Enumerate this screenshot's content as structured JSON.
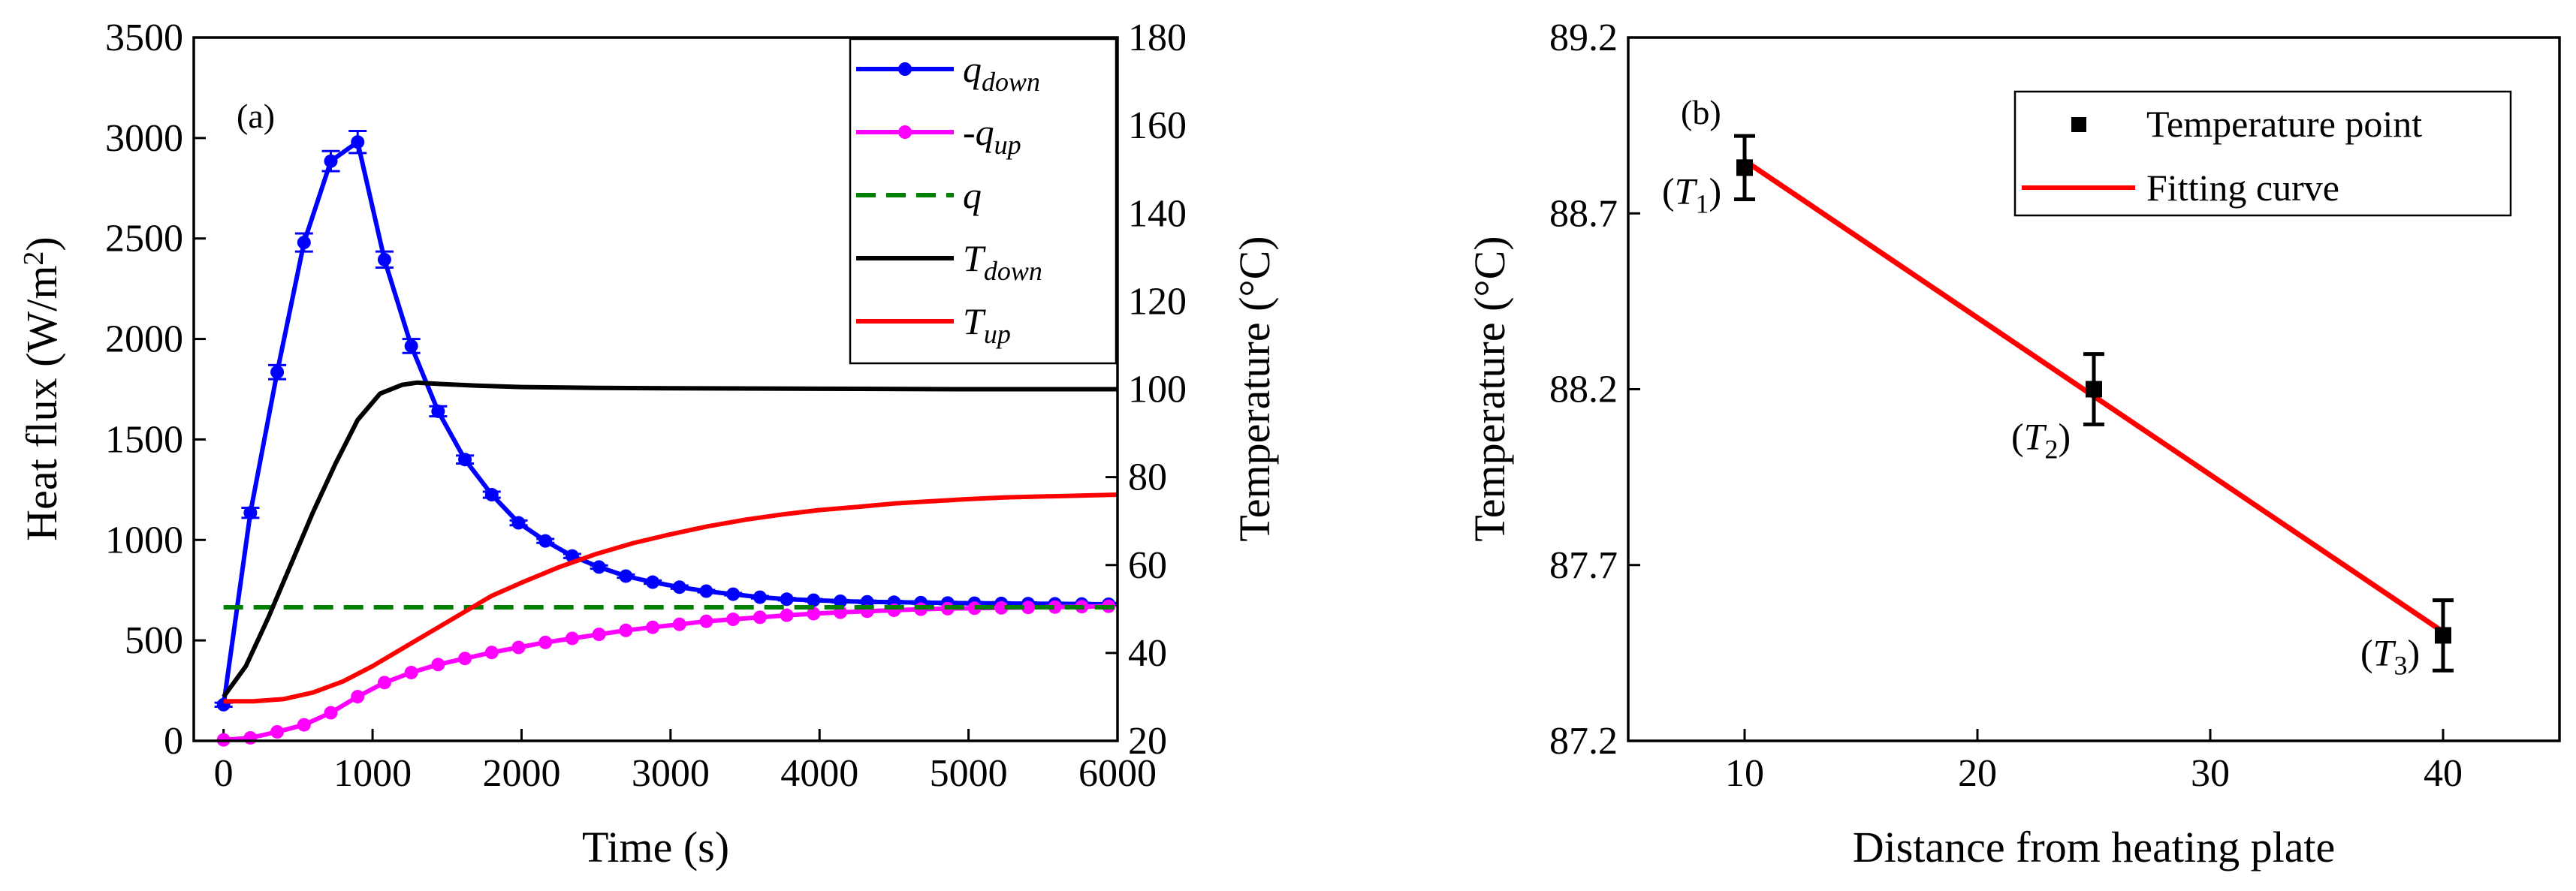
{
  "chart_data": [
    {
      "type": "line",
      "panel_label": "(a)",
      "xlabel": "Time (s)",
      "ylabel": "Heat flux (W/m²)",
      "ylabel_base": "Heat flux (W/m",
      "ylabel_sup": "2",
      "ylabel_end": ")",
      "y2label": "Temperature (°C)",
      "xlim": [
        -200,
        6000
      ],
      "ylim": [
        0,
        3500
      ],
      "y2lim": [
        20,
        180
      ],
      "xticks": [
        0,
        1000,
        2000,
        3000,
        4000,
        5000,
        6000
      ],
      "yticks": [
        0,
        500,
        1000,
        1500,
        2000,
        2500,
        3000,
        3500
      ],
      "y2ticks": [
        20,
        40,
        60,
        80,
        100,
        120,
        140,
        160,
        180
      ],
      "legend_position": "top-right",
      "series": [
        {
          "name": "q_down",
          "legend": {
            "main": "q",
            "sub": "down",
            "prefix": ""
          },
          "color": "#0000ff",
          "axis": "left",
          "style": "solid-markers-errorbars",
          "x": [
            0,
            180,
            360,
            540,
            720,
            900,
            1080,
            1260,
            1440,
            1620,
            1800,
            1980,
            2160,
            2340,
            2520,
            2700,
            2880,
            3060,
            3240,
            3420,
            3600,
            3780,
            3960,
            4140,
            4320,
            4500,
            4680,
            4860,
            5040,
            5220,
            5400,
            5580,
            5760,
            5940
          ],
          "values": [
            180,
            1135,
            1835,
            2480,
            2885,
            2980,
            2395,
            1965,
            1640,
            1400,
            1225,
            1085,
            995,
            920,
            865,
            820,
            790,
            765,
            745,
            730,
            715,
            705,
            700,
            695,
            692,
            690,
            688,
            686,
            685,
            684,
            683,
            682,
            681,
            680
          ],
          "errors": [
            10,
            25,
            35,
            45,
            50,
            55,
            40,
            35,
            25,
            20,
            15,
            12,
            10,
            10,
            8,
            8,
            8,
            8,
            6,
            6,
            6,
            6,
            6,
            6,
            6,
            6,
            6,
            6,
            6,
            6,
            6,
            6,
            6,
            6
          ]
        },
        {
          "name": "-q_up",
          "legend": {
            "main": "q",
            "sub": "up",
            "prefix": "-"
          },
          "color": "#ff00ff",
          "axis": "left",
          "style": "solid-markers",
          "x": [
            0,
            180,
            360,
            540,
            720,
            900,
            1080,
            1260,
            1440,
            1620,
            1800,
            1980,
            2160,
            2340,
            2520,
            2700,
            2880,
            3060,
            3240,
            3420,
            3600,
            3780,
            3960,
            4140,
            4320,
            4500,
            4680,
            4860,
            5040,
            5220,
            5400,
            5580,
            5760,
            5940
          ],
          "values": [
            5,
            15,
            45,
            80,
            140,
            220,
            290,
            340,
            380,
            410,
            440,
            465,
            490,
            510,
            530,
            550,
            565,
            580,
            595,
            605,
            615,
            625,
            633,
            640,
            645,
            650,
            655,
            658,
            660,
            662,
            664,
            666,
            668,
            670
          ]
        },
        {
          "name": "q",
          "legend": {
            "main": "q",
            "sub": "",
            "prefix": ""
          },
          "color": "#008000",
          "axis": "left",
          "style": "dashed",
          "x": [
            0,
            6000
          ],
          "values": [
            665,
            665
          ]
        },
        {
          "name": "T_down",
          "legend": {
            "main": "T",
            "sub": "down",
            "prefix": ""
          },
          "color": "#000000",
          "axis": "right",
          "style": "solid",
          "x": [
            0,
            150,
            300,
            450,
            600,
            750,
            900,
            1050,
            1200,
            1300,
            1450,
            1700,
            2000,
            2500,
            3000,
            4000,
            5000,
            6000
          ],
          "values": [
            30,
            37,
            48,
            60,
            72,
            83,
            93,
            99,
            101,
            101.5,
            101.2,
            100.8,
            100.5,
            100.3,
            100.2,
            100.1,
            100,
            100
          ]
        },
        {
          "name": "T_up",
          "legend": {
            "main": "T",
            "sub": "up",
            "prefix": ""
          },
          "color": "#ff0000",
          "axis": "right",
          "style": "solid",
          "x": [
            0,
            200,
            400,
            600,
            800,
            1000,
            1200,
            1400,
            1600,
            1800,
            2000,
            2250,
            2500,
            2750,
            3000,
            3250,
            3500,
            3750,
            4000,
            4250,
            4500,
            4750,
            5000,
            5250,
            5500,
            5750,
            6000
          ],
          "values": [
            29,
            29,
            29.5,
            31,
            33.5,
            37,
            41,
            45,
            49,
            53,
            56,
            59.5,
            62.5,
            65,
            67,
            68.8,
            70.3,
            71.5,
            72.5,
            73.2,
            74,
            74.5,
            75,
            75.4,
            75.6,
            75.8,
            76
          ]
        }
      ]
    },
    {
      "type": "scatter",
      "panel_label": "(b)",
      "xlabel": "Distance from heating plate",
      "ylabel": "Temperature (°C)",
      "xlim": [
        5,
        45
      ],
      "ylim": [
        87.2,
        89.2
      ],
      "xticks": [
        10,
        20,
        30,
        40
      ],
      "yticks": [
        "87.2",
        "87.7",
        "88.2",
        "88.7",
        "89.2"
      ],
      "legend_position": "top-right",
      "legend": {
        "points": "Temperature point",
        "fit": "Fitting curve"
      },
      "points": [
        {
          "x": 10,
          "y": 88.83,
          "err": 0.09,
          "label_main": "T",
          "label_sub": "1"
        },
        {
          "x": 25,
          "y": 88.2,
          "err": 0.1,
          "label_main": "T",
          "label_sub": "2"
        },
        {
          "x": 40,
          "y": 87.5,
          "err": 0.1,
          "label_main": "T",
          "label_sub": "3"
        }
      ],
      "fit": {
        "x": [
          10,
          40
        ],
        "y": [
          88.85,
          87.51
        ]
      },
      "point_color": "#000000",
      "fit_color": "#ff0000"
    }
  ]
}
